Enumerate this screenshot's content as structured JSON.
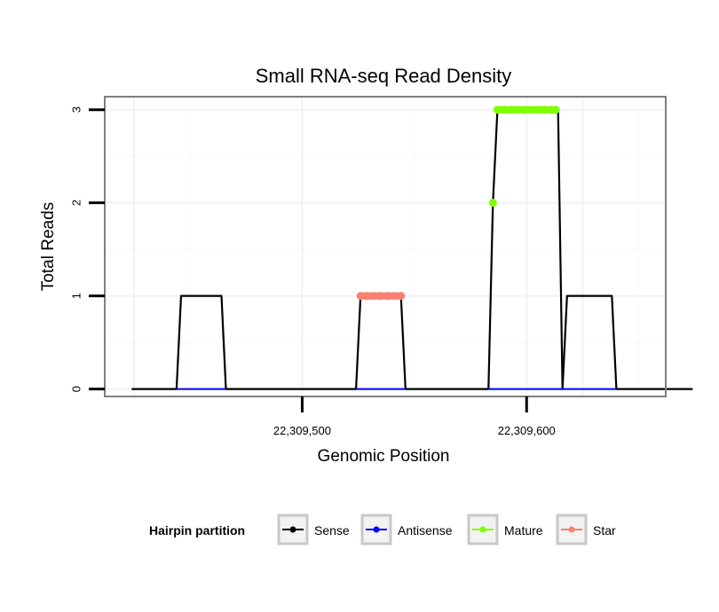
{
  "chart_data": {
    "type": "line",
    "title": "Small RNA-seq Read Density",
    "xlabel": "Genomic Position",
    "ylabel": "Total Reads",
    "xlim": [
      22309412,
      22309662
    ],
    "ylim": [
      -0.08,
      3.14
    ],
    "x_ticks": [
      {
        "value": 22309500,
        "label": "22,309,500"
      },
      {
        "value": 22309600,
        "label": "22,309,600"
      }
    ],
    "y_ticks": [
      {
        "value": 0,
        "label": "0"
      },
      {
        "value": 1,
        "label": "1"
      },
      {
        "value": 2,
        "label": "2"
      },
      {
        "value": 3,
        "label": "3"
      }
    ],
    "grid": true,
    "legend": {
      "title": "Hairpin partition",
      "position": "bottom",
      "entries": [
        {
          "name": "Sense",
          "color": "#000000"
        },
        {
          "name": "Antisense",
          "color": "#0000ff"
        },
        {
          "name": "Mature",
          "color": "#7fff00"
        },
        {
          "name": "Star",
          "color": "#fa8072"
        }
      ]
    },
    "series": [
      {
        "name": "Sense",
        "color": "#000000",
        "x": [
          22309424,
          22309444,
          22309446,
          22309464,
          22309466,
          22309524,
          22309526,
          22309544,
          22309546,
          22309583,
          22309585,
          22309587,
          22309600,
          22309614,
          22309616,
          22309618,
          22309638,
          22309640,
          22309674
        ],
        "y": [
          0,
          0,
          1,
          1,
          0,
          0,
          1,
          1,
          0,
          0,
          2,
          3,
          3,
          3,
          0,
          1,
          1,
          0,
          0
        ]
      },
      {
        "name": "Antisense",
        "color": "#0000ff",
        "x": [
          22309444,
          22309466,
          22309524,
          22309546,
          22309583,
          22309640
        ],
        "y": [
          0,
          0,
          0,
          0,
          0,
          0
        ]
      },
      {
        "name": "Mature",
        "color": "#7fff00",
        "x": [
          22309585,
          22309587,
          22309590,
          22309593,
          22309596,
          22309599,
          22309602,
          22309605,
          22309608,
          22309611,
          22309613
        ],
        "y": [
          2,
          3,
          3,
          3,
          3,
          3,
          3,
          3,
          3,
          3,
          3
        ]
      },
      {
        "name": "Star",
        "color": "#fa8072",
        "x": [
          22309526,
          22309529,
          22309532,
          22309535,
          22309538,
          22309541,
          22309544
        ],
        "y": [
          1,
          1,
          1,
          1,
          1,
          1,
          1
        ]
      }
    ]
  }
}
